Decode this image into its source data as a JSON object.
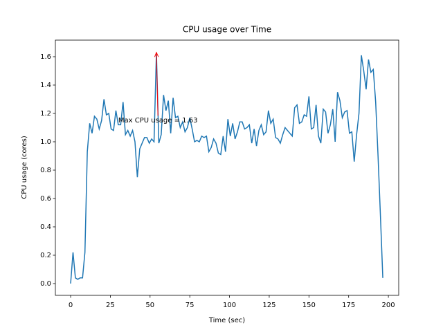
{
  "chart_data": {
    "type": "line",
    "title": "CPU usage over Time",
    "x_label": "Time (sec)",
    "y_label": "CPU usage (cores)",
    "x": [
      0,
      1.5,
      3,
      4.5,
      6,
      7.5,
      9,
      10.5,
      12,
      13.5,
      15,
      16.5,
      18,
      19.5,
      21,
      22.5,
      24,
      25.5,
      27,
      28.5,
      30,
      31.5,
      33,
      34.5,
      36,
      37.5,
      39,
      40.5,
      42,
      43.5,
      45,
      46.5,
      48,
      49.5,
      51,
      52.5,
      54,
      55.5,
      57,
      58.5,
      60,
      61.5,
      63,
      64.5,
      66,
      67.5,
      69,
      70.5,
      72,
      73.5,
      75,
      76.5,
      78,
      79.5,
      81,
      82.5,
      84,
      85.5,
      87,
      88.5,
      90,
      91.5,
      93,
      94.5,
      96,
      97.5,
      99,
      100.5,
      102,
      103.5,
      105,
      106.5,
      108,
      109.5,
      111,
      112.5,
      114,
      115.5,
      117,
      118.5,
      120,
      121.5,
      123,
      124.5,
      126,
      127.5,
      129,
      130.5,
      132,
      133.5,
      135,
      136.5,
      138,
      139.5,
      141,
      142.5,
      144,
      145.5,
      147,
      148.5,
      150,
      151.5,
      153,
      154.5,
      156,
      157.5,
      159,
      160.5,
      162,
      163.5,
      165,
      166.5,
      168,
      169.5,
      171,
      172.5,
      174,
      175.5,
      177,
      178.5,
      180,
      181.5,
      183,
      184.5,
      186,
      187.5,
      189,
      190.5,
      192,
      193.5,
      195,
      196.5
    ],
    "series": [
      {
        "name": "CPU usage",
        "color": "#1f77b4",
        "values": [
          0.0,
          0.22,
          0.04,
          0.03,
          0.04,
          0.04,
          0.22,
          0.93,
          1.13,
          1.06,
          1.18,
          1.16,
          1.09,
          1.15,
          1.3,
          1.19,
          1.2,
          1.09,
          1.08,
          1.22,
          1.12,
          1.12,
          1.28,
          1.05,
          1.08,
          1.04,
          1.08,
          1.0,
          0.75,
          0.95,
          0.99,
          1.03,
          1.03,
          0.99,
          1.02,
          1.0,
          1.63,
          0.99,
          1.05,
          1.33,
          1.22,
          1.29,
          1.06,
          1.31,
          1.17,
          1.18,
          1.1,
          1.14,
          1.07,
          1.1,
          1.17,
          1.09,
          1.0,
          1.01,
          1.0,
          1.04,
          1.03,
          1.04,
          0.93,
          0.96,
          1.02,
          0.99,
          0.92,
          0.91,
          1.04,
          0.93,
          1.16,
          1.04,
          1.13,
          1.02,
          1.07,
          1.14,
          1.14,
          1.09,
          1.1,
          1.12,
          0.99,
          1.09,
          0.97,
          1.08,
          1.12,
          1.05,
          1.07,
          1.22,
          1.13,
          1.16,
          1.03,
          1.02,
          0.99,
          1.05,
          1.1,
          1.08,
          1.06,
          1.04,
          1.24,
          1.26,
          1.13,
          1.14,
          1.19,
          1.18,
          1.32,
          1.09,
          1.1,
          1.26,
          1.04,
          0.99,
          1.23,
          1.21,
          1.06,
          1.12,
          1.23,
          1.0,
          1.35,
          1.29,
          1.17,
          1.21,
          1.22,
          1.06,
          1.07,
          0.86,
          1.05,
          1.2,
          1.61,
          1.5,
          1.37,
          1.58,
          1.49,
          1.51,
          1.28,
          0.9,
          0.48,
          0.04
        ]
      }
    ],
    "xlim": [
      -9.6,
      206.5
    ],
    "xticks": [
      0,
      25,
      50,
      75,
      100,
      125,
      150,
      175,
      200
    ],
    "ylim": [
      -0.083,
      1.717
    ],
    "yticks": [
      {
        "value": 0,
        "label": "0.0"
      },
      0.2,
      0.4,
      0.6,
      0.8,
      {
        "value": 1,
        "label": "1.0"
      },
      1.2,
      1.4,
      1.6
    ],
    "annotation": {
      "text": "Max CPU usage = 1.63",
      "xy": [
        54,
        1.63
      ],
      "xytext": [
        30,
        1.15
      ],
      "color": "red"
    }
  }
}
